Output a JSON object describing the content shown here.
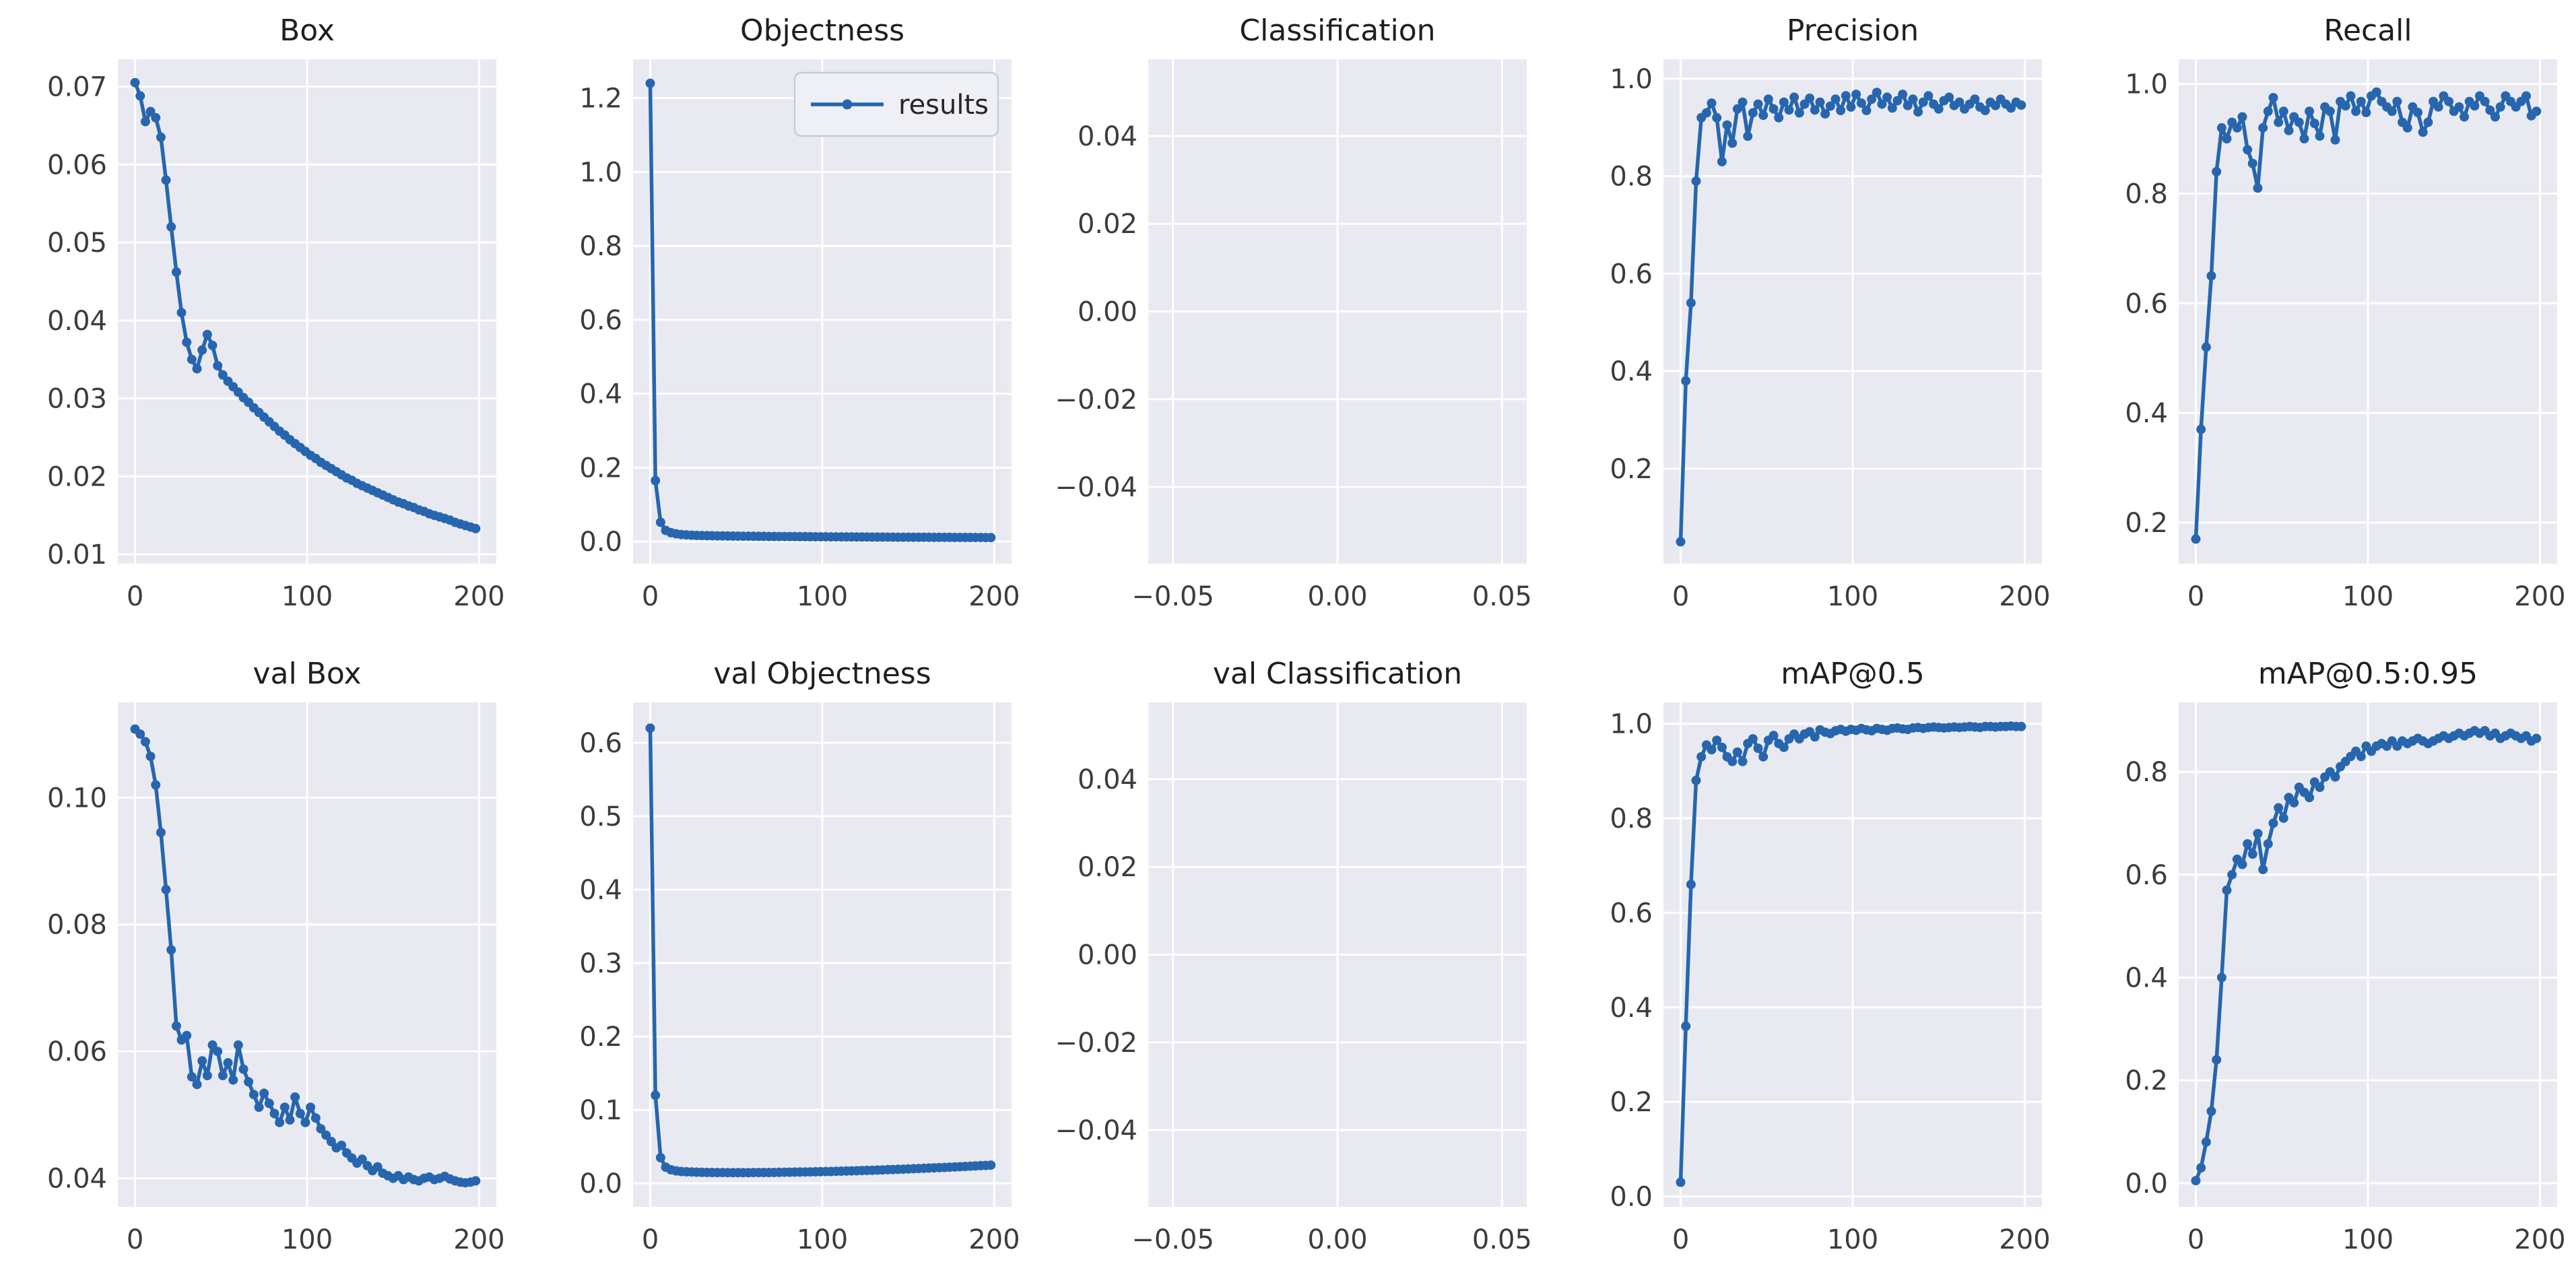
{
  "figure": {
    "style": {
      "line_color": "#2766ae",
      "plot_bg": "#e9eaf1",
      "grid_color": "#ffffff",
      "tick_color": "#3c3c3c",
      "title_color": "#1f1f1f",
      "legend_bg": "#eef0f6",
      "legend_border": "#c9cbd4"
    }
  },
  "chart_data": {
    "type": "line",
    "legend_label": "results",
    "legend_chart_index": 1,
    "epochs": [
      0,
      3,
      6,
      9,
      12,
      15,
      18,
      21,
      24,
      27,
      30,
      33,
      36,
      39,
      42,
      45,
      48,
      51,
      54,
      57,
      60,
      63,
      66,
      69,
      72,
      75,
      78,
      81,
      84,
      87,
      90,
      93,
      96,
      99,
      102,
      105,
      108,
      111,
      114,
      117,
      120,
      123,
      126,
      129,
      132,
      135,
      138,
      141,
      144,
      147,
      150,
      153,
      156,
      159,
      162,
      165,
      168,
      171,
      174,
      177,
      180,
      183,
      186,
      189,
      192,
      195,
      198
    ],
    "charts": [
      {
        "title": "Box",
        "xlim": [
          -10,
          210
        ],
        "ylim": [
          0.0088,
          0.0735
        ],
        "x_ticks": [
          0,
          100,
          200
        ],
        "x_tick_labels": [
          "0",
          "100",
          "200"
        ],
        "y_ticks": [
          0.01,
          0.02,
          0.03,
          0.04,
          0.05,
          0.06,
          0.07
        ],
        "y_tick_labels": [
          "0.01",
          "0.02",
          "0.03",
          "0.04",
          "0.05",
          "0.06",
          "0.07"
        ],
        "values": [
          0.0705,
          0.0688,
          0.0655,
          0.0668,
          0.066,
          0.0635,
          0.058,
          0.052,
          0.0462,
          0.041,
          0.0372,
          0.035,
          0.0338,
          0.0362,
          0.0382,
          0.0368,
          0.0342,
          0.033,
          0.0322,
          0.0315,
          0.0308,
          0.0301,
          0.0295,
          0.0288,
          0.0282,
          0.0276,
          0.027,
          0.0264,
          0.0258,
          0.0253,
          0.0247,
          0.0242,
          0.0237,
          0.0232,
          0.0227,
          0.0223,
          0.0218,
          0.0214,
          0.021,
          0.0206,
          0.0202,
          0.0198,
          0.0195,
          0.0191,
          0.0188,
          0.0185,
          0.0182,
          0.0179,
          0.0176,
          0.0173,
          0.017,
          0.0167,
          0.0165,
          0.0162,
          0.016,
          0.0157,
          0.0155,
          0.0152,
          0.015,
          0.0148,
          0.0146,
          0.0144,
          0.0141,
          0.0139,
          0.0137,
          0.0135,
          0.0133
        ]
      },
      {
        "title": "Objectness",
        "xlim": [
          -10,
          210
        ],
        "ylim": [
          -0.06,
          1.305
        ],
        "x_ticks": [
          0,
          100,
          200
        ],
        "x_tick_labels": [
          "0",
          "100",
          "200"
        ],
        "y_ticks": [
          0.0,
          0.2,
          0.4,
          0.6,
          0.8,
          1.0,
          1.2
        ],
        "y_tick_labels": [
          "0.0",
          "0.2",
          "0.4",
          "0.6",
          "0.8",
          "1.0",
          "1.2"
        ],
        "values": [
          1.24,
          0.165,
          0.052,
          0.03,
          0.024,
          0.021,
          0.019,
          0.018,
          0.017,
          0.0165,
          0.0162,
          0.0158,
          0.0156,
          0.0153,
          0.0151,
          0.0149,
          0.0147,
          0.0146,
          0.0144,
          0.0143,
          0.0141,
          0.014,
          0.0139,
          0.0137,
          0.0136,
          0.0135,
          0.0134,
          0.0133,
          0.0132,
          0.0131,
          0.013,
          0.0129,
          0.0128,
          0.0128,
          0.0127,
          0.0126,
          0.0125,
          0.0125,
          0.0124,
          0.0123,
          0.0122,
          0.0122,
          0.0121,
          0.012,
          0.012,
          0.0119,
          0.0118,
          0.0118,
          0.0117,
          0.0117,
          0.0116,
          0.0115,
          0.0115,
          0.0114,
          0.0114,
          0.0113,
          0.0113,
          0.0112,
          0.0112,
          0.0111,
          0.0111,
          0.011,
          0.011,
          0.0109,
          0.0109,
          0.0108,
          0.0108
        ]
      },
      {
        "title": "Classification",
        "xlim": [
          -0.0575,
          0.0575
        ],
        "ylim": [
          -0.0575,
          0.0575
        ],
        "x_ticks": [
          -0.05,
          0.0,
          0.05
        ],
        "x_tick_labels": [
          "−0.05",
          "0.00",
          "0.05"
        ],
        "y_ticks": [
          -0.04,
          -0.02,
          0.0,
          0.02,
          0.04
        ],
        "y_tick_labels": [
          "−0.04",
          "−0.02",
          "0.00",
          "0.02",
          "0.04"
        ],
        "values": null
      },
      {
        "title": "Precision",
        "xlim": [
          -10,
          210
        ],
        "ylim": [
          0.005,
          1.04
        ],
        "x_ticks": [
          0,
          100,
          200
        ],
        "x_tick_labels": [
          "0",
          "100",
          "200"
        ],
        "y_ticks": [
          0.2,
          0.4,
          0.6,
          0.8,
          1.0
        ],
        "y_tick_labels": [
          "0.2",
          "0.4",
          "0.6",
          "0.8",
          "1.0"
        ],
        "values": [
          0.05,
          0.38,
          0.54,
          0.79,
          0.92,
          0.93,
          0.95,
          0.92,
          0.83,
          0.905,
          0.868,
          0.938,
          0.952,
          0.882,
          0.93,
          0.948,
          0.925,
          0.958,
          0.938,
          0.92,
          0.952,
          0.936,
          0.962,
          0.93,
          0.948,
          0.96,
          0.936,
          0.952,
          0.928,
          0.944,
          0.958,
          0.935,
          0.965,
          0.942,
          0.968,
          0.95,
          0.935,
          0.958,
          0.972,
          0.948,
          0.962,
          0.94,
          0.955,
          0.968,
          0.945,
          0.958,
          0.932,
          0.952,
          0.965,
          0.948,
          0.938,
          0.955,
          0.962,
          0.945,
          0.952,
          0.938,
          0.948,
          0.958,
          0.942,
          0.935,
          0.952,
          0.945,
          0.958,
          0.948,
          0.94,
          0.952,
          0.946
        ]
      },
      {
        "title": "Recall",
        "xlim": [
          -10,
          210
        ],
        "ylim": [
          0.125,
          1.045
        ],
        "x_ticks": [
          0,
          100,
          200
        ],
        "x_tick_labels": [
          "0",
          "100",
          "200"
        ],
        "y_ticks": [
          0.2,
          0.4,
          0.6,
          0.8,
          1.0
        ],
        "y_tick_labels": [
          "0.2",
          "0.4",
          "0.6",
          "0.8",
          "1.0"
        ],
        "values": [
          0.17,
          0.37,
          0.52,
          0.65,
          0.84,
          0.92,
          0.9,
          0.93,
          0.92,
          0.94,
          0.88,
          0.855,
          0.81,
          0.92,
          0.95,
          0.975,
          0.93,
          0.95,
          0.915,
          0.94,
          0.93,
          0.9,
          0.95,
          0.928,
          0.905,
          0.958,
          0.95,
          0.898,
          0.968,
          0.96,
          0.978,
          0.95,
          0.968,
          0.948,
          0.978,
          0.985,
          0.968,
          0.958,
          0.95,
          0.968,
          0.93,
          0.92,
          0.958,
          0.948,
          0.912,
          0.93,
          0.968,
          0.958,
          0.978,
          0.968,
          0.95,
          0.958,
          0.94,
          0.968,
          0.96,
          0.978,
          0.968,
          0.952,
          0.94,
          0.958,
          0.978,
          0.968,
          0.958,
          0.968,
          0.978,
          0.942,
          0.95
        ]
      },
      {
        "title": "val Box",
        "xlim": [
          -10,
          210
        ],
        "ylim": [
          0.0355,
          0.115
        ],
        "x_ticks": [
          0,
          100,
          200
        ],
        "x_tick_labels": [
          "0",
          "100",
          "200"
        ],
        "y_ticks": [
          0.04,
          0.06,
          0.08,
          0.1
        ],
        "y_tick_labels": [
          "0.04",
          "0.06",
          "0.08",
          "0.10"
        ],
        "values": [
          0.1108,
          0.11,
          0.1088,
          0.1065,
          0.102,
          0.0945,
          0.0855,
          0.076,
          0.064,
          0.0618,
          0.0625,
          0.056,
          0.0548,
          0.0585,
          0.0562,
          0.061,
          0.06,
          0.0562,
          0.0582,
          0.0555,
          0.061,
          0.0572,
          0.0552,
          0.0532,
          0.0512,
          0.0534,
          0.0518,
          0.0502,
          0.0488,
          0.0512,
          0.0492,
          0.0528,
          0.0502,
          0.0488,
          0.0512,
          0.0495,
          0.0478,
          0.0468,
          0.0458,
          0.0448,
          0.0452,
          0.044,
          0.0432,
          0.0424,
          0.043,
          0.042,
          0.0412,
          0.0418,
          0.0408,
          0.0404,
          0.04,
          0.0404,
          0.0398,
          0.0402,
          0.0398,
          0.0396,
          0.04,
          0.0402,
          0.0398,
          0.04,
          0.0403,
          0.0399,
          0.0396,
          0.0394,
          0.0393,
          0.0394,
          0.0396
        ]
      },
      {
        "title": "val Objectness",
        "xlim": [
          -10,
          210
        ],
        "ylim": [
          -0.032,
          0.655
        ],
        "x_ticks": [
          0,
          100,
          200
        ],
        "x_tick_labels": [
          "0",
          "100",
          "200"
        ],
        "y_ticks": [
          0.0,
          0.1,
          0.2,
          0.3,
          0.4,
          0.5,
          0.6
        ],
        "y_tick_labels": [
          "0.0",
          "0.1",
          "0.2",
          "0.3",
          "0.4",
          "0.5",
          "0.6"
        ],
        "values": [
          0.62,
          0.12,
          0.035,
          0.022,
          0.0185,
          0.017,
          0.0162,
          0.0158,
          0.0155,
          0.0152,
          0.015,
          0.0149,
          0.0148,
          0.0147,
          0.0147,
          0.0146,
          0.0146,
          0.0146,
          0.0146,
          0.0146,
          0.0147,
          0.0147,
          0.0148,
          0.0148,
          0.0149,
          0.015,
          0.0151,
          0.0152,
          0.0153,
          0.0154,
          0.0155,
          0.0156,
          0.0158,
          0.0159,
          0.0161,
          0.0162,
          0.0164,
          0.0166,
          0.0168,
          0.017,
          0.0172,
          0.0174,
          0.0176,
          0.0178,
          0.0181,
          0.0183,
          0.0186,
          0.0188,
          0.0191,
          0.0193,
          0.0196,
          0.0199,
          0.0202,
          0.0205,
          0.0208,
          0.0211,
          0.0214,
          0.0217,
          0.022,
          0.0223,
          0.0227,
          0.023,
          0.0234,
          0.0237,
          0.0241,
          0.0244,
          0.0248
        ]
      },
      {
        "title": "val Classification",
        "xlim": [
          -0.0575,
          0.0575
        ],
        "ylim": [
          -0.0575,
          0.0575
        ],
        "x_ticks": [
          -0.05,
          0.0,
          0.05
        ],
        "x_tick_labels": [
          "−0.05",
          "0.00",
          "0.05"
        ],
        "y_ticks": [
          -0.04,
          -0.02,
          0.0,
          0.02,
          0.04
        ],
        "y_tick_labels": [
          "−0.04",
          "−0.02",
          "0.00",
          "0.02",
          "0.04"
        ],
        "values": null
      },
      {
        "title": "mAP@0.5",
        "xlim": [
          -10,
          210
        ],
        "ylim": [
          -0.022,
          1.045
        ],
        "x_ticks": [
          0,
          100,
          200
        ],
        "x_tick_labels": [
          "0",
          "100",
          "200"
        ],
        "y_ticks": [
          0.0,
          0.2,
          0.4,
          0.6,
          0.8,
          1.0
        ],
        "y_tick_labels": [
          "0.0",
          "0.2",
          "0.4",
          "0.6",
          "0.8",
          "1.0"
        ],
        "values": [
          0.03,
          0.36,
          0.66,
          0.88,
          0.93,
          0.955,
          0.945,
          0.965,
          0.95,
          0.93,
          0.92,
          0.94,
          0.92,
          0.958,
          0.968,
          0.948,
          0.93,
          0.965,
          0.975,
          0.958,
          0.95,
          0.968,
          0.978,
          0.968,
          0.978,
          0.983,
          0.972,
          0.987,
          0.982,
          0.979,
          0.985,
          0.988,
          0.984,
          0.988,
          0.986,
          0.99,
          0.987,
          0.985,
          0.99,
          0.988,
          0.986,
          0.99,
          0.991,
          0.989,
          0.988,
          0.991,
          0.992,
          0.99,
          0.992,
          0.993,
          0.992,
          0.991,
          0.992,
          0.993,
          0.992,
          0.993,
          0.994,
          0.993,
          0.992,
          0.994,
          0.994,
          0.993,
          0.994,
          0.994,
          0.995,
          0.994,
          0.994
        ]
      },
      {
        "title": "mAP@0.5:0.95",
        "xlim": [
          -10,
          210
        ],
        "ylim": [
          -0.046,
          0.935
        ],
        "x_ticks": [
          0,
          100,
          200
        ],
        "x_tick_labels": [
          "0",
          "100",
          "200"
        ],
        "y_ticks": [
          0.0,
          0.2,
          0.4,
          0.6,
          0.8
        ],
        "y_tick_labels": [
          "0.0",
          "0.2",
          "0.4",
          "0.6",
          "0.8"
        ],
        "values": [
          0.005,
          0.03,
          0.08,
          0.14,
          0.24,
          0.4,
          0.57,
          0.6,
          0.63,
          0.62,
          0.66,
          0.64,
          0.68,
          0.61,
          0.66,
          0.7,
          0.73,
          0.71,
          0.75,
          0.74,
          0.77,
          0.76,
          0.75,
          0.78,
          0.77,
          0.79,
          0.8,
          0.79,
          0.81,
          0.82,
          0.83,
          0.84,
          0.83,
          0.85,
          0.84,
          0.85,
          0.855,
          0.85,
          0.86,
          0.85,
          0.86,
          0.855,
          0.86,
          0.865,
          0.86,
          0.855,
          0.86,
          0.865,
          0.87,
          0.865,
          0.87,
          0.875,
          0.87,
          0.875,
          0.88,
          0.875,
          0.88,
          0.87,
          0.875,
          0.865,
          0.87,
          0.875,
          0.87,
          0.865,
          0.87,
          0.86,
          0.865
        ]
      }
    ]
  }
}
